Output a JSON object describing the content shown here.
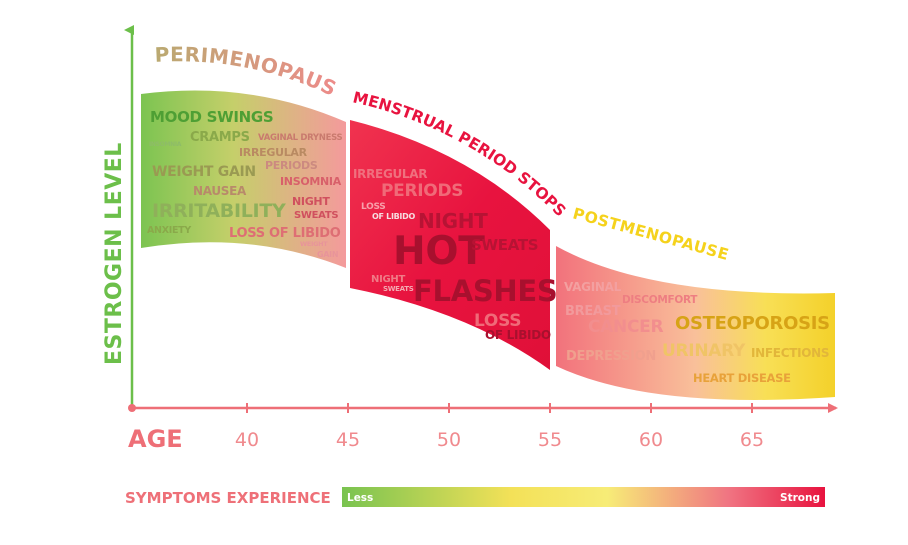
{
  "axes": {
    "y_label": "ESTROGEN LEVEL",
    "x_label": "AGE",
    "x_ticks": [
      "40",
      "45",
      "50",
      "55",
      "60",
      "65"
    ]
  },
  "stages": {
    "perimenopause": "PERIMENOPAUSE",
    "menstrual_stop": "MENSTRUAL PERIOD STOPS",
    "postmenopause": "POSTMENOPAUSE"
  },
  "perimenopause_symptoms": {
    "mood_swings": "MOOD SWINGS",
    "cramps": "CRAMPS",
    "vaginal_dryness": "VAGINAL DRYNESS",
    "insomnia_small": "INSOMNIA",
    "irregular": "IRREGULAR",
    "periods": "PERIODS",
    "weight_gain": "WEIGHT GAIN",
    "insomnia": "INSOMNIA",
    "nausea": "NAUSEA",
    "night": "NIGHT",
    "irritability": "IRRITABILITY",
    "sweats": "SWEATS",
    "anxiety": "ANXIETY",
    "loss_of_libido": "LOSS OF LIBIDO",
    "weight": "WEIGHT",
    "gain": "GAIN"
  },
  "menstrual_symptoms": {
    "irregular": "IRREGULAR",
    "periods": "PERIODS",
    "loss": "LOSS",
    "of_libido": "OF LIBIDO",
    "night": "NIGHT",
    "hot": "HOT",
    "sweats": "SWEATS",
    "night_small": "NIGHT",
    "sweats_small": "SWEATS",
    "flashes": "FLASHES",
    "loss_2": "LOSS",
    "of_libido_2": "OF LIBIDO"
  },
  "postmenopause_symptoms": {
    "vaginal": "VAGINAL",
    "discomfort": "DISCOMFORT",
    "breast": "BREAST",
    "cancer": "CANCER",
    "osteoporosis": "OSTEOPOROSIS",
    "depression": "DEPRESSION",
    "urinary": "URINARY",
    "infections": "INFECTIONS",
    "heart_disease": "HEART DISEASE"
  },
  "legend": {
    "title": "SYMPTOMS EXPERIENCE",
    "less": "Less",
    "strong": "Strong"
  },
  "colors": {
    "green": "#6cbf4a",
    "pink": "#f07a82",
    "red": "#e8133f",
    "yellow": "#f5d21c"
  }
}
